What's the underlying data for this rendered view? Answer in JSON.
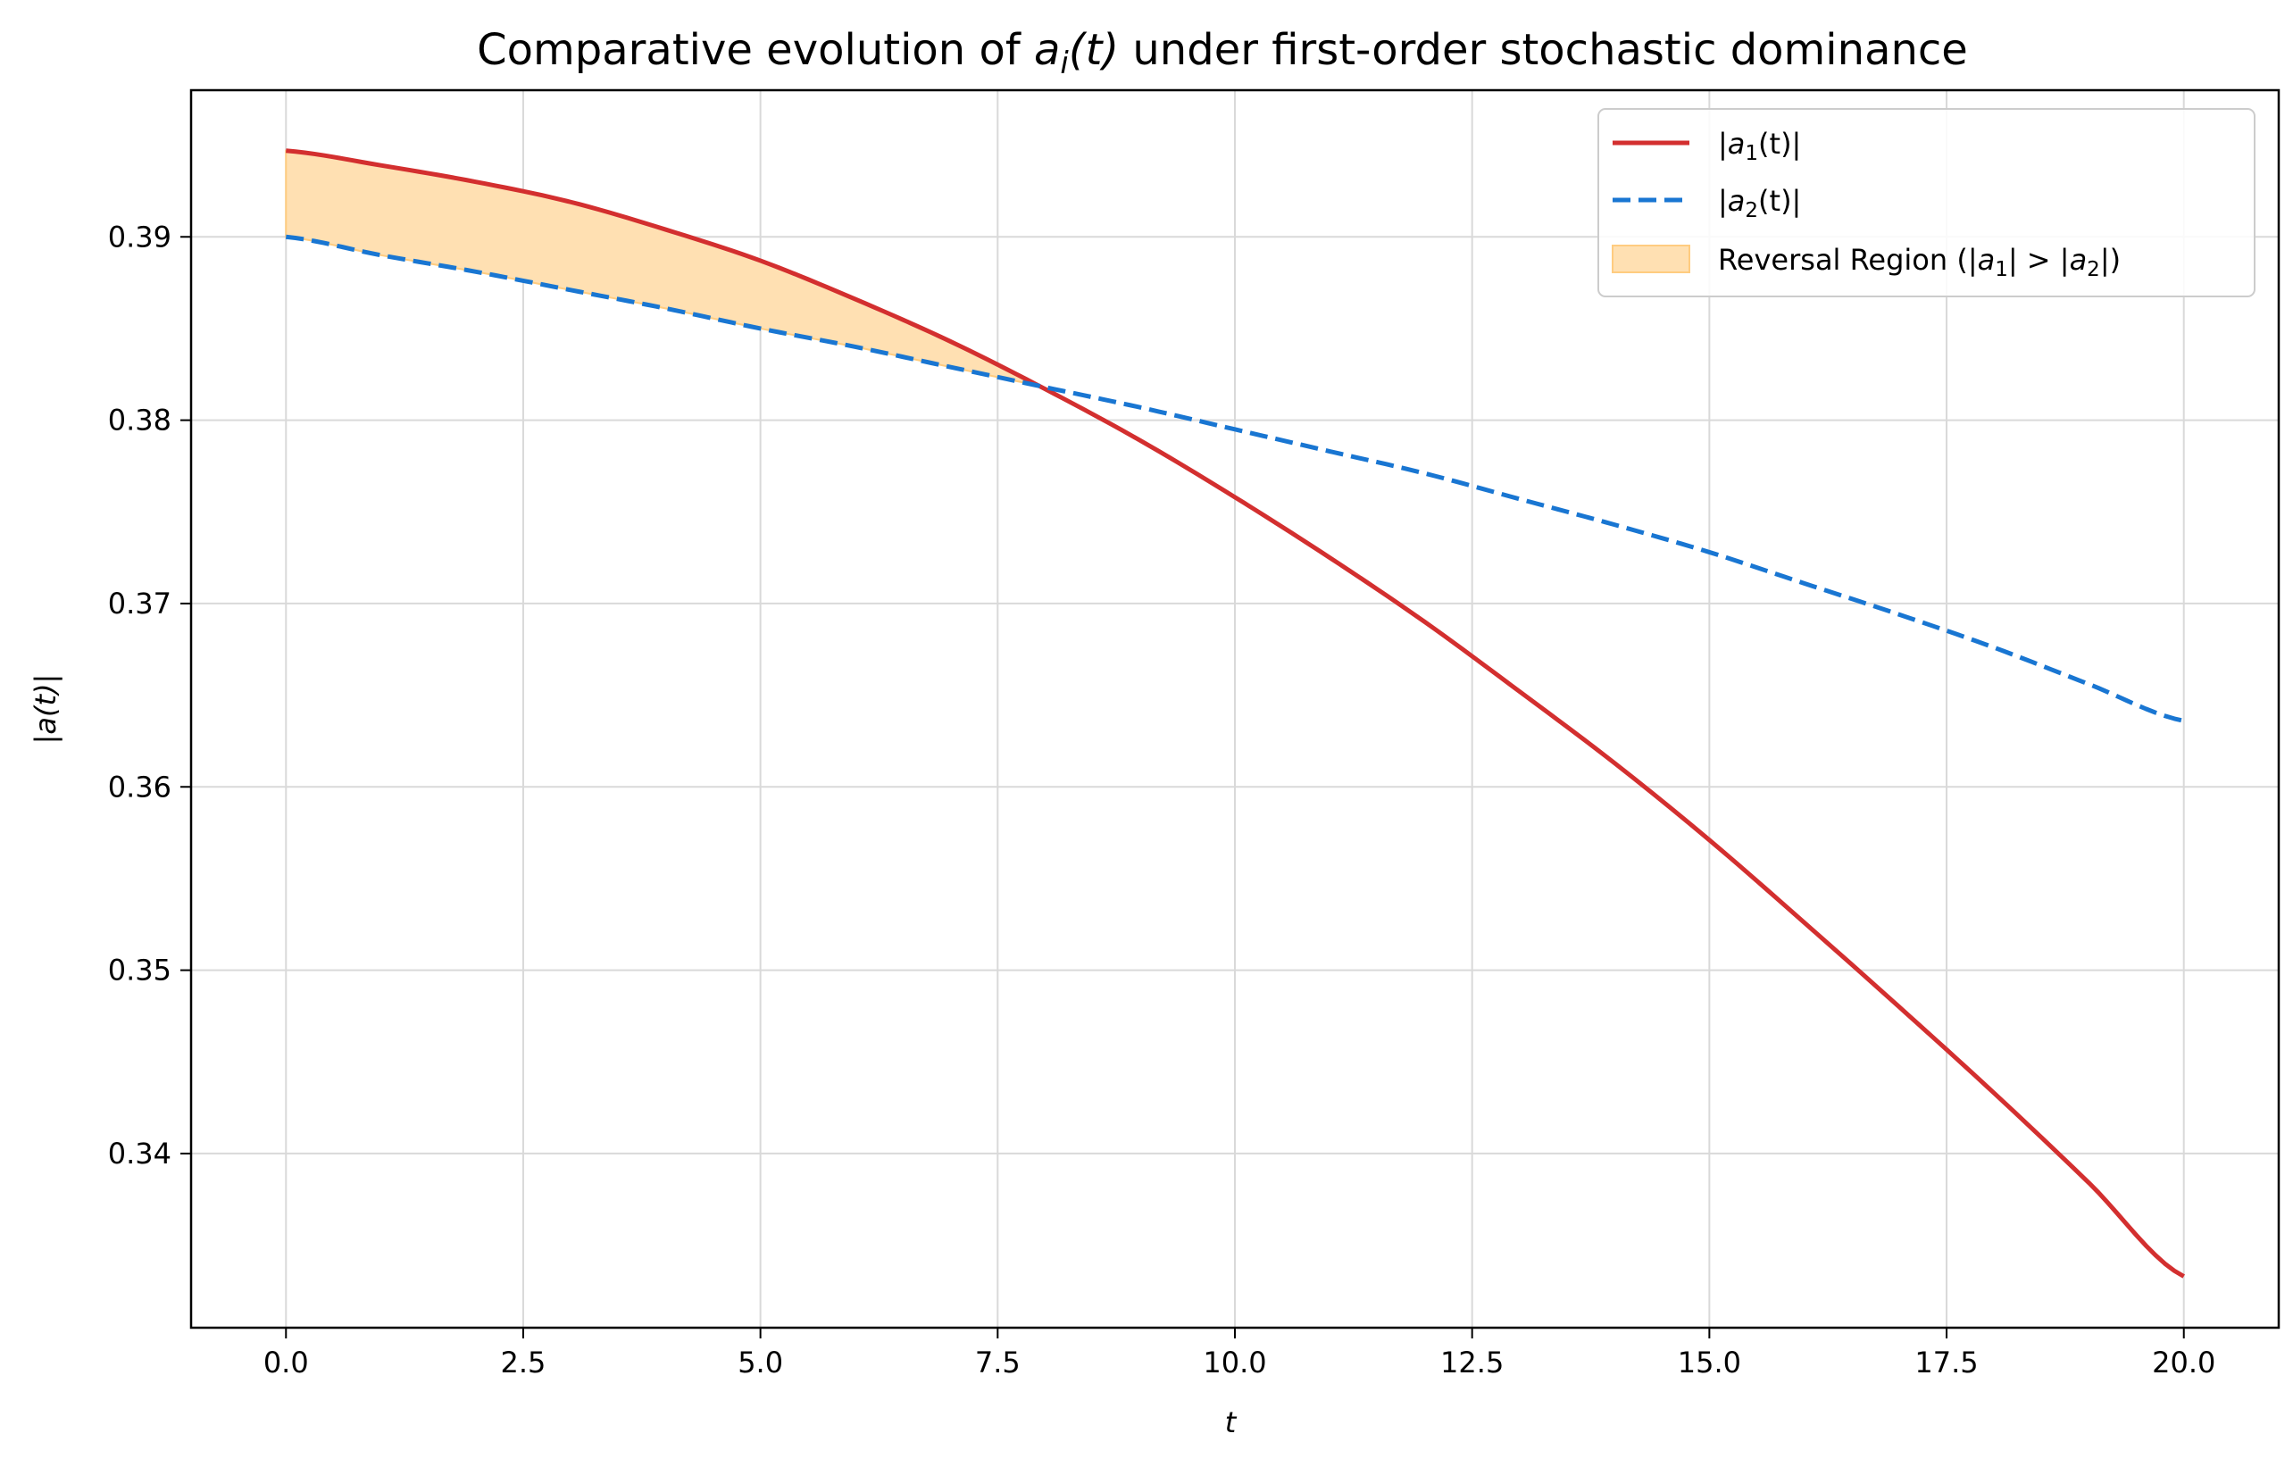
{
  "chart_data": {
    "type": "line",
    "title": "Comparative evolution of a_i(t) under first-order stochastic dominance",
    "title_parts": [
      "Comparative evolution of ",
      "a",
      "i",
      "(t)",
      " under first-order stochastic dominance"
    ],
    "xlabel": "t",
    "ylabel": "|a(t)|",
    "xlim": [
      -1.0,
      21.0
    ],
    "ylim": [
      0.3305,
      0.398
    ],
    "x_ticks": [
      0.0,
      2.5,
      5.0,
      7.5,
      10.0,
      12.5,
      15.0,
      17.5,
      20.0
    ],
    "x_tick_labels": [
      "0.0",
      "2.5",
      "5.0",
      "7.5",
      "10.0",
      "12.5",
      "15.0",
      "17.5",
      "20.0"
    ],
    "y_ticks": [
      0.34,
      0.35,
      0.36,
      0.37,
      0.38,
      0.39
    ],
    "y_tick_labels": [
      "0.34",
      "0.35",
      "0.36",
      "0.37",
      "0.38",
      "0.39"
    ],
    "grid": true,
    "legend_position": "top-right",
    "x": [
      0,
      1,
      2,
      3,
      4,
      5,
      6,
      7,
      8,
      9,
      10,
      11,
      12,
      13,
      14,
      15,
      16,
      17,
      18,
      19,
      20
    ],
    "series": [
      {
        "name": "|a1(t)|",
        "legend_parts": [
          "|",
          "a",
          "1",
          "(t)|"
        ],
        "color": "#d32f2f",
        "style": "solid",
        "values": [
          0.3947,
          0.3939,
          0.393,
          0.3919,
          0.3904,
          0.3887,
          0.3866,
          0.3843,
          0.3817,
          0.3789,
          0.3758,
          0.3725,
          0.369,
          0.3652,
          0.3613,
          0.3571,
          0.3526,
          0.348,
          0.3433,
          0.3384,
          0.3333
        ]
      },
      {
        "name": "|a2(t)|",
        "legend_parts": [
          "|",
          "a",
          "2",
          "(t)|"
        ],
        "color": "#1976d2",
        "style": "dashed",
        "values": [
          0.39,
          0.389,
          0.3881,
          0.3871,
          0.3861,
          0.385,
          0.384,
          0.3829,
          0.3818,
          0.3807,
          0.3795,
          0.3783,
          0.3771,
          0.3757,
          0.3743,
          0.3728,
          0.3711,
          0.3694,
          0.3676,
          0.3656,
          0.3636
        ]
      }
    ],
    "fill_region": {
      "name": "Reversal Region (|a1| > |a2|)",
      "legend_parts": [
        "Reversal Region (|",
        "a",
        "1",
        "| > |",
        "a",
        "2",
        "|)"
      ],
      "color": "#ffe0b2",
      "edge_color": "#ffcc80",
      "condition": "a1 > a2"
    }
  }
}
